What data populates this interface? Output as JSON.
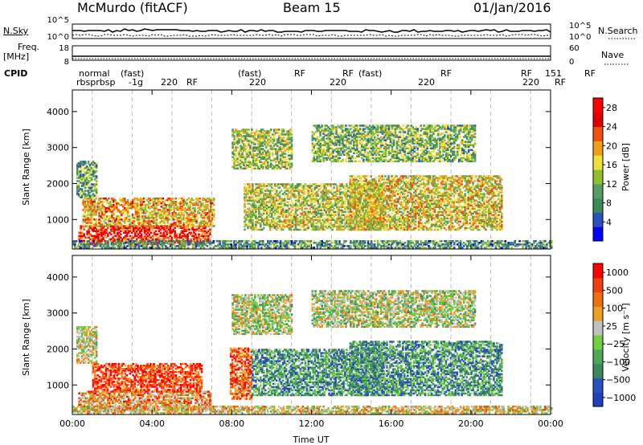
{
  "header": {
    "station": "McMurdo (fitACF)",
    "beam": "Beam 15",
    "date": "01/Jan/2016"
  },
  "strips": {
    "noise": {
      "left_label": "N.Sky",
      "right_label": "N.Search",
      "left_ticks": [
        "10^5",
        "10^0"
      ],
      "right_ticks": [
        "10^5",
        "10^0"
      ]
    },
    "freq": {
      "left_label": "Freq.",
      "left_unit": "[MHz]",
      "right_label": "Nave",
      "left_ticks": [
        "18",
        "8"
      ],
      "right_ticks": [
        "60",
        "0"
      ]
    },
    "cpid": {
      "label": "CPID"
    }
  },
  "cpid_labels": {
    "row1": [
      "normal",
      "(fast)",
      "(fast)",
      "(fast)",
      "RF",
      "RF",
      "RF",
      "RF",
      "151",
      "RF"
    ],
    "row2": [
      "rbsprbsp",
      "-1g",
      "220",
      "RF",
      "220",
      "220",
      "220",
      "220",
      "RF"
    ],
    "row3": [
      "220"
    ]
  },
  "chart_data": [
    {
      "type": "heatmap",
      "name": "power",
      "ylabel": "Slant Range [km]",
      "xlabel": "",
      "xlim": [
        "00:00",
        "24:00"
      ],
      "ylim": [
        180,
        4600
      ],
      "yticks": [
        1000,
        2000,
        3000,
        4000
      ],
      "colorbar": {
        "label": "Power [dB]",
        "ticks": [
          4,
          8,
          12,
          16,
          20,
          24,
          28
        ],
        "range": [
          0,
          30
        ],
        "colors": [
          "#0000ff",
          "#2a52be",
          "#3d8a5a",
          "#55a060",
          "#8fc030",
          "#f0e040",
          "#f0a020",
          "#f05010",
          "#e00000",
          "#ff0000"
        ]
      },
      "regions": [
        {
          "t0": 0.3,
          "t1": 6.9,
          "r0": 300,
          "r1": 800,
          "level": 0.85
        },
        {
          "t0": 0.5,
          "t1": 7.1,
          "r0": 800,
          "r1": 1600,
          "level": 0.6
        },
        {
          "t0": 0.2,
          "t1": 1.2,
          "r0": 1600,
          "r1": 2600,
          "level": 0.35
        },
        {
          "t0": 8.0,
          "t1": 11.0,
          "r0": 2400,
          "r1": 3500,
          "level": 0.45
        },
        {
          "t0": 8.6,
          "t1": 15.6,
          "r0": 700,
          "r1": 2000,
          "level": 0.5
        },
        {
          "t0": 12.0,
          "t1": 20.2,
          "r0": 2600,
          "r1": 3600,
          "level": 0.4
        },
        {
          "t0": 13.9,
          "t1": 21.5,
          "r0": 700,
          "r1": 2200,
          "level": 0.55
        },
        {
          "t0": 0.0,
          "t1": 24.0,
          "r0": 200,
          "r1": 420,
          "level": 0.3
        }
      ]
    },
    {
      "type": "heatmap",
      "name": "velocity",
      "ylabel": "Slant Range [km]",
      "xlabel": "Time UT",
      "xlim": [
        "00:00",
        "24:00"
      ],
      "ylim": [
        180,
        4600
      ],
      "yticks": [
        1000,
        2000,
        3000,
        4000
      ],
      "xticks": [
        "00:00",
        "04:00",
        "08:00",
        "12:00",
        "16:00",
        "20:00",
        "00:00"
      ],
      "colorbar": {
        "label": "Velocity [m s⁻¹]",
        "ticks": [
          "1000",
          "500",
          "100",
          "25",
          "−25",
          "−100",
          "−500",
          "−1000"
        ],
        "colors": [
          "#2040c0",
          "#2a52be",
          "#3d8a5a",
          "#4ca858",
          "#70d040",
          "#c0c0c0",
          "#f0a020",
          "#f07010",
          "#f04010",
          "#ff0000"
        ]
      },
      "regions": [
        {
          "t0": 0.3,
          "t1": 6.9,
          "r0": 300,
          "r1": 800,
          "level": 0.7
        },
        {
          "t0": 1.0,
          "t1": 6.5,
          "r0": 800,
          "r1": 1600,
          "level": 0.85
        },
        {
          "t0": 0.2,
          "t1": 1.2,
          "r0": 1600,
          "r1": 2600,
          "level": 0.55
        },
        {
          "t0": 7.9,
          "t1": 9.0,
          "r0": 600,
          "r1": 2000,
          "level": 0.8
        },
        {
          "t0": 8.0,
          "t1": 11.0,
          "r0": 2400,
          "r1": 3500,
          "level": 0.5
        },
        {
          "t0": 9.0,
          "t1": 15.6,
          "r0": 700,
          "r1": 2000,
          "level": 0.3
        },
        {
          "t0": 12.0,
          "t1": 20.2,
          "r0": 2600,
          "r1": 3600,
          "level": 0.5
        },
        {
          "t0": 13.9,
          "t1": 21.5,
          "r0": 700,
          "r1": 2200,
          "level": 0.3
        },
        {
          "t0": 0.0,
          "t1": 24.0,
          "r0": 200,
          "r1": 420,
          "level": 0.6
        }
      ]
    }
  ]
}
